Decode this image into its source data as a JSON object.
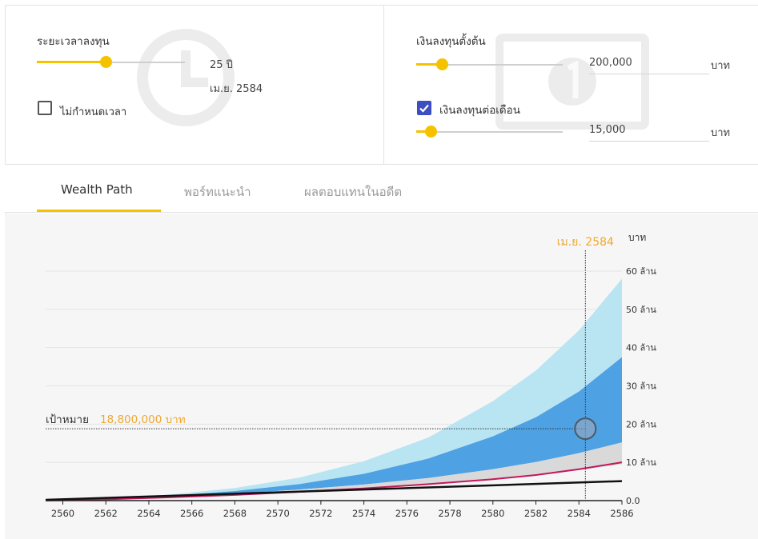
{
  "settings": {
    "duration": {
      "label": "ระยะเวลาลงทุน",
      "value": "25 ปี",
      "end_date": "เม.ย. 2584",
      "slider_fraction": 0.47
    },
    "no_limit": {
      "label": "ไม่กำหนดเวลา",
      "checked": false
    },
    "initial": {
      "label": "เงินลงทุนตั้งต้น",
      "value": "200,000",
      "unit": "บาท",
      "slider_fraction": 0.18
    },
    "monthly": {
      "label": "เงินลงทุนต่อเดือน",
      "checked": true,
      "value": "15,000",
      "unit": "บาท",
      "slider_fraction": 0.1
    }
  },
  "tabs": [
    {
      "label": "Wealth Path",
      "active": true
    },
    {
      "label": "พอร์ทแนะนำ",
      "active": false
    },
    {
      "label": "ผลตอบแทนในอดีต",
      "active": false
    }
  ],
  "colors": {
    "accent": "#f5c200",
    "checkbox": "#3c4ec0",
    "band_outer": "#b9e4f2",
    "band_inner": "#4ea1e2",
    "band_low": "#d9d9d9",
    "median_line": "#c2185b",
    "principal_line": "#111111",
    "marker_text": "#f0a830"
  },
  "chart_data": {
    "type": "area",
    "unit_label": "บาท",
    "y_tick_labels": [
      "0.0",
      "10 ล้าน",
      "20 ล้าน",
      "30 ล้าน",
      "40 ล้าน",
      "50 ล้าน",
      "60 ล้าน"
    ],
    "x_tick_labels": [
      "2560",
      "2562",
      "2564",
      "2566",
      "2568",
      "2570",
      "2572",
      "2574",
      "2576",
      "2578",
      "2580",
      "2582",
      "2584",
      "2586"
    ],
    "xlim": [
      2559.2,
      2586
    ],
    "ylim": [
      0,
      60000000
    ],
    "grid": true,
    "target": {
      "label": "เป้าหมาย",
      "value_text": "18,800,000 บาท",
      "value": 18800000
    },
    "marker": {
      "label": "เม.ย. 2584",
      "x": 2584.3,
      "y": 18800000
    },
    "series": [
      {
        "role": "band_outer_upper",
        "x": [
          2559.2,
          2562,
          2565,
          2568,
          2571,
          2574,
          2577,
          2580,
          2582,
          2584,
          2586
        ],
        "values": [
          0,
          600000,
          1600000,
          3300000,
          6000000,
          10300000,
          16500000,
          26000000,
          34000000,
          44500000,
          58000000
        ]
      },
      {
        "role": "band_inner_upper",
        "x": [
          2559.2,
          2562,
          2565,
          2568,
          2571,
          2574,
          2577,
          2580,
          2582,
          2584,
          2586
        ],
        "values": [
          0,
          500000,
          1300000,
          2500000,
          4300000,
          7000000,
          11000000,
          16800000,
          21800000,
          28500000,
          37500000
        ]
      },
      {
        "role": "band_inner_lower",
        "x": [
          2559.2,
          2562,
          2565,
          2568,
          2571,
          2574,
          2577,
          2580,
          2582,
          2584,
          2586
        ],
        "values": [
          0,
          400000,
          1000000,
          1800000,
          2900000,
          4200000,
          5900000,
          8200000,
          10100000,
          12400000,
          15200000
        ]
      },
      {
        "role": "band_low_lower",
        "x": [
          2559.2,
          2562,
          2565,
          2568,
          2571,
          2574,
          2577,
          2580,
          2582,
          2584,
          2586
        ],
        "values": [
          0,
          350000,
          850000,
          1500000,
          2300000,
          3200000,
          4300000,
          5600000,
          6700000,
          8000000,
          9500000
        ]
      },
      {
        "role": "median",
        "x": [
          2559.2,
          2562,
          2565,
          2568,
          2571,
          2574,
          2577,
          2580,
          2582,
          2584,
          2586
        ],
        "values": [
          0,
          350000,
          850000,
          1500000,
          2300000,
          3200000,
          4300000,
          5600000,
          6700000,
          8200000,
          10000000
        ]
      },
      {
        "role": "principal",
        "x": [
          2559.2,
          2586
        ],
        "values": [
          200000,
          5100000
        ]
      }
    ]
  }
}
